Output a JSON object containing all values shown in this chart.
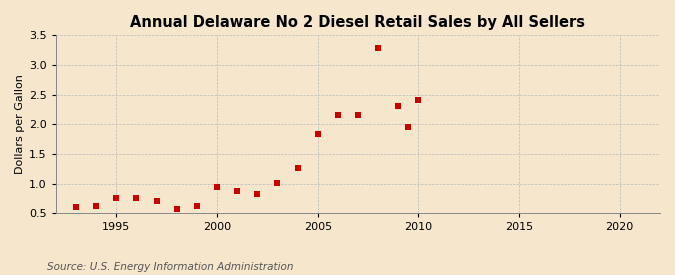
{
  "title": "Annual Delaware No 2 Diesel Retail Sales by All Sellers",
  "ylabel": "Dollars per Gallon",
  "source": "Source: U.S. Energy Information Administration",
  "background_color": "#f5e6cc",
  "marker_color": "#cc0000",
  "xlim": [
    1992,
    2022
  ],
  "ylim": [
    0.5,
    3.5
  ],
  "xticks": [
    1995,
    2000,
    2005,
    2010,
    2015,
    2020
  ],
  "yticks": [
    0.5,
    1.0,
    1.5,
    2.0,
    2.5,
    3.0,
    3.5
  ],
  "data": [
    [
      1993,
      0.61
    ],
    [
      1994,
      0.62
    ],
    [
      1995,
      0.76
    ],
    [
      1996,
      0.76
    ],
    [
      1997,
      0.71
    ],
    [
      1998,
      0.58
    ],
    [
      1999,
      0.62
    ],
    [
      2000,
      0.95
    ],
    [
      2001,
      0.88
    ],
    [
      2002,
      0.83
    ],
    [
      2003,
      1.01
    ],
    [
      2004,
      1.27
    ],
    [
      2005,
      1.84
    ],
    [
      2006,
      2.15
    ],
    [
      2007,
      2.16
    ],
    [
      2008,
      3.29
    ],
    [
      2009,
      2.31
    ],
    [
      2009.5,
      1.96
    ],
    [
      2010,
      2.41
    ]
  ],
  "title_fontsize": 10.5,
  "tick_fontsize": 8,
  "ylabel_fontsize": 8,
  "source_fontsize": 7.5,
  "marker_size": 16,
  "grid_color": "#bbbbbb",
  "grid_linestyle": "--",
  "grid_linewidth": 0.5
}
